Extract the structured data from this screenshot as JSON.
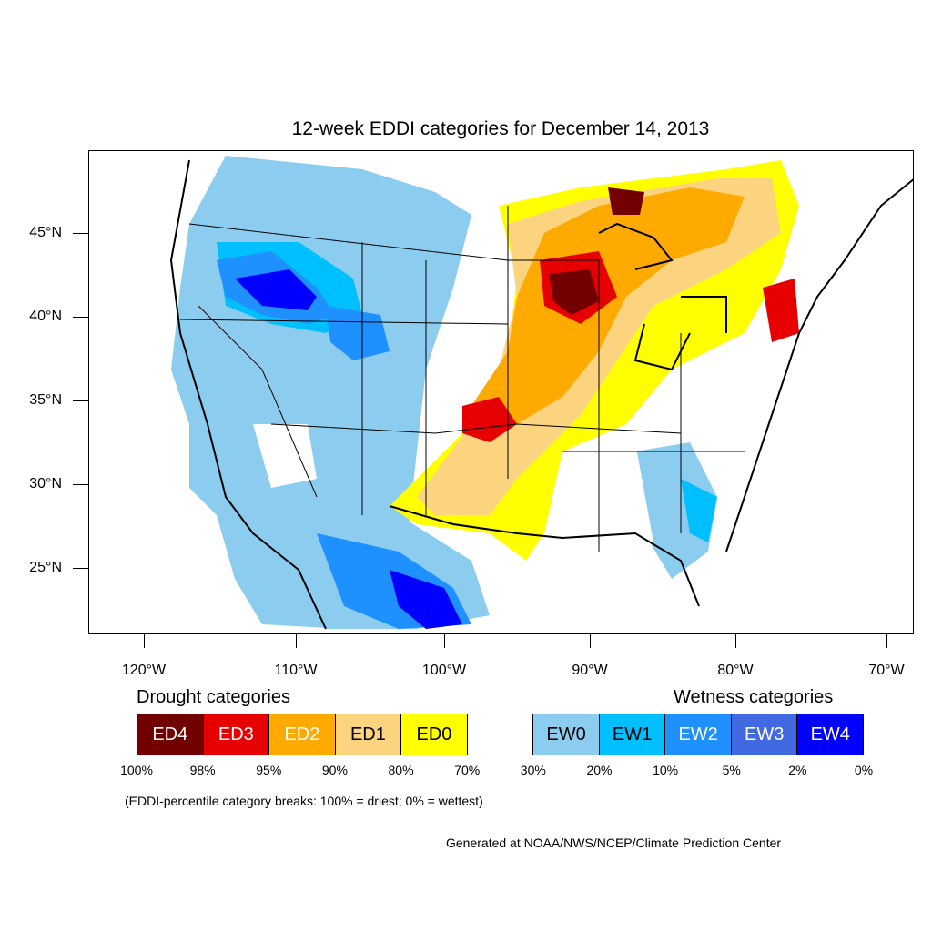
{
  "title": "12-week EDDI categories for December 14, 2013",
  "lat_labels": [
    "45°N",
    "40°N",
    "35°N",
    "30°N",
    "25°N"
  ],
  "lon_labels": [
    "120°W",
    "110°W",
    "100°W",
    "90°W",
    "80°W",
    "70°W"
  ],
  "drought_label": "Drought categories",
  "wetness_label": "Wetness categories",
  "categories": [
    {
      "label": "ED4",
      "color": "#730000",
      "text_color": "#ffffff"
    },
    {
      "label": "ED3",
      "color": "#e60000",
      "text_color": "#ffffff"
    },
    {
      "label": "ED2",
      "color": "#ffaa00",
      "text_color": "#ffffff"
    },
    {
      "label": "ED1",
      "color": "#fcd37f",
      "text_color": "#000000"
    },
    {
      "label": "ED0",
      "color": "#ffff00",
      "text_color": "#000000"
    },
    {
      "label": "",
      "color": "#ffffff",
      "text_color": "#000000"
    },
    {
      "label": "EW0",
      "color": "#8ccdef",
      "text_color": "#000000"
    },
    {
      "label": "EW1",
      "color": "#00bfff",
      "text_color": "#000000"
    },
    {
      "label": "EW2",
      "color": "#1e90ff",
      "text_color": "#ffffff"
    },
    {
      "label": "EW3",
      "color": "#4169e1",
      "text_color": "#ffffff"
    },
    {
      "label": "EW4",
      "color": "#0000ff",
      "text_color": "#ffffff"
    }
  ],
  "breaks": [
    "100%",
    "98%",
    "95%",
    "90%",
    "80%",
    "70%",
    "30%",
    "20%",
    "10%",
    "5%",
    "2%",
    "0%"
  ],
  "note": "(EDDI-percentile category breaks: 100% = driest; 0% = wettest)",
  "credit": "Generated at NOAA/NWS/NCEP/Climate Prediction Center"
}
